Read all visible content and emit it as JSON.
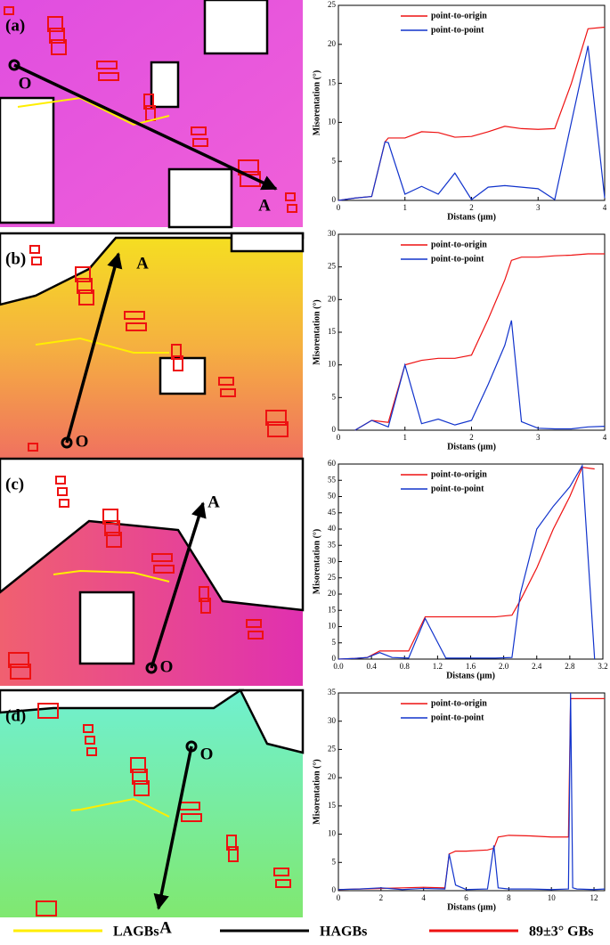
{
  "panels": [
    {
      "label": "(a)",
      "origin": "O",
      "end": "A"
    },
    {
      "label": "(b)",
      "origin": "O",
      "end": "A"
    },
    {
      "label": "(c)",
      "origin": "O",
      "end": "A"
    },
    {
      "label": "(d)",
      "origin": "O",
      "end": "A"
    }
  ],
  "legend": [
    {
      "name": "LAGBs",
      "color": "#ffee00"
    },
    {
      "name": "HAGBs",
      "color": "#000000"
    },
    {
      "name": "89±3° GBs",
      "color": "#ee1111"
    }
  ],
  "chart_data": [
    {
      "type": "line",
      "xlabel": "Distans (μm)",
      "ylabel": "Misorentation (°)",
      "legend_position": "top-left",
      "x": [
        0,
        0.25,
        0.5,
        0.7,
        0.75,
        1,
        1.25,
        1.5,
        1.75,
        2,
        2.25,
        2.5,
        2.75,
        3,
        3.25,
        3.5,
        3.75,
        4
      ],
      "series": [
        {
          "name": "point-to-origin",
          "color": "#ee1111",
          "values": [
            0,
            0.3,
            0.5,
            7.5,
            8,
            8,
            8.8,
            8.7,
            8.1,
            8.2,
            8.8,
            9.5,
            9.2,
            9.1,
            9.2,
            15,
            22,
            22.2
          ]
        },
        {
          "name": "point-to-point",
          "color": "#1133cc",
          "values": [
            0,
            0.3,
            0.5,
            7.5,
            7.4,
            0.8,
            1.8,
            0.8,
            3.5,
            0.1,
            1.7,
            1.9,
            1.7,
            1.5,
            0.1,
            10,
            19.8,
            0.3
          ]
        }
      ],
      "xlim": [
        0,
        4
      ],
      "xticks": [
        0,
        1,
        2,
        3,
        4
      ],
      "ylim": [
        0,
        25
      ],
      "yticks": [
        0,
        5,
        10,
        15,
        20,
        25
      ]
    },
    {
      "type": "line",
      "xlabel": "Distans (μm)",
      "ylabel": "Misorentation (°)",
      "legend_position": "top-left",
      "x": [
        0.25,
        0.5,
        0.75,
        1,
        1.25,
        1.5,
        1.75,
        2,
        2.25,
        2.5,
        2.6,
        2.75,
        3,
        3.25,
        3.5,
        3.75,
        4
      ],
      "series": [
        {
          "name": "point-to-origin",
          "color": "#ee1111",
          "values": [
            0,
            1.5,
            1.2,
            10,
            10.7,
            11,
            11,
            11.5,
            17,
            23,
            26,
            26.5,
            26.5,
            26.7,
            26.8,
            27,
            27
          ]
        },
        {
          "name": "point-to-point",
          "color": "#1133cc",
          "values": [
            0,
            1.5,
            0.5,
            10,
            1,
            1.7,
            0.8,
            1.5,
            7,
            13,
            16.8,
            1.3,
            0.3,
            0.2,
            0.2,
            0.5,
            0.6
          ]
        }
      ],
      "xlim": [
        0,
        4
      ],
      "xticks": [
        0,
        1,
        2,
        3,
        4
      ],
      "ylim": [
        0,
        30
      ],
      "yticks": [
        0,
        5,
        10,
        15,
        20,
        25,
        30
      ]
    },
    {
      "type": "line",
      "xlabel": "Distans (μm)",
      "ylabel": "Misorentation (°)",
      "legend_position": "top-left",
      "x": [
        0,
        0.2,
        0.35,
        0.5,
        0.65,
        0.85,
        1.05,
        1.3,
        1.6,
        1.9,
        2.1,
        2.2,
        2.4,
        2.6,
        2.8,
        2.95,
        3.1
      ],
      "series": [
        {
          "name": "point-to-origin",
          "color": "#ee1111",
          "values": [
            0,
            0.2,
            0.5,
            2.5,
            2.5,
            2.5,
            13,
            13,
            13,
            13,
            13.5,
            18,
            28,
            40,
            50,
            59,
            58.5
          ]
        },
        {
          "name": "point-to-point",
          "color": "#1133cc",
          "values": [
            0,
            0.2,
            0.5,
            2,
            0.5,
            0.3,
            12.5,
            0.3,
            0.3,
            0.3,
            0.5,
            20,
            40,
            47,
            53,
            59.5,
            0
          ]
        }
      ],
      "xlim": [
        0,
        3.2
      ],
      "xticks": [
        {
          "value": 0,
          "label": "0.0"
        },
        0.4,
        0.8,
        1.2,
        1.6,
        {
          "value": 2,
          "label": "2.0"
        },
        2.4,
        2.8,
        3.2
      ],
      "ylim": [
        0,
        60
      ],
      "yticks": [
        0,
        5,
        10,
        15,
        20,
        25,
        30,
        35,
        40,
        45,
        50,
        55,
        60
      ]
    },
    {
      "type": "line",
      "xlabel": "Distans (μm)",
      "ylabel": "Misorentation (°)",
      "legend_position": "top-left",
      "x": [
        0,
        1,
        2,
        3,
        4,
        5,
        5.2,
        5.5,
        6,
        7,
        7.3,
        7.5,
        8,
        9,
        10,
        10.8,
        10.9,
        11,
        11.2,
        12,
        12.5
      ],
      "series": [
        {
          "name": "point-to-origin",
          "color": "#ee1111",
          "values": [
            0.2,
            0.3,
            0.4,
            0.5,
            0.6,
            0.5,
            6.5,
            7,
            7,
            7.2,
            7.5,
            9.5,
            9.8,
            9.7,
            9.5,
            9.5,
            34,
            34,
            34,
            34,
            34
          ]
        },
        {
          "name": "point-to-point",
          "color": "#1133cc",
          "values": [
            0.2,
            0.3,
            0.5,
            0.2,
            0.4,
            0.3,
            6.5,
            1,
            0.2,
            0.3,
            8,
            0.5,
            0.3,
            0.3,
            0.2,
            0.3,
            35,
            0.5,
            0.3,
            0.2,
            0.3
          ]
        }
      ],
      "xlim": [
        0,
        12.5
      ],
      "xticks": [
        0,
        2,
        4,
        6,
        8,
        10,
        12
      ],
      "ylim": [
        0,
        35
      ],
      "yticks": [
        0,
        5,
        10,
        15,
        20,
        25,
        30,
        35
      ]
    }
  ]
}
